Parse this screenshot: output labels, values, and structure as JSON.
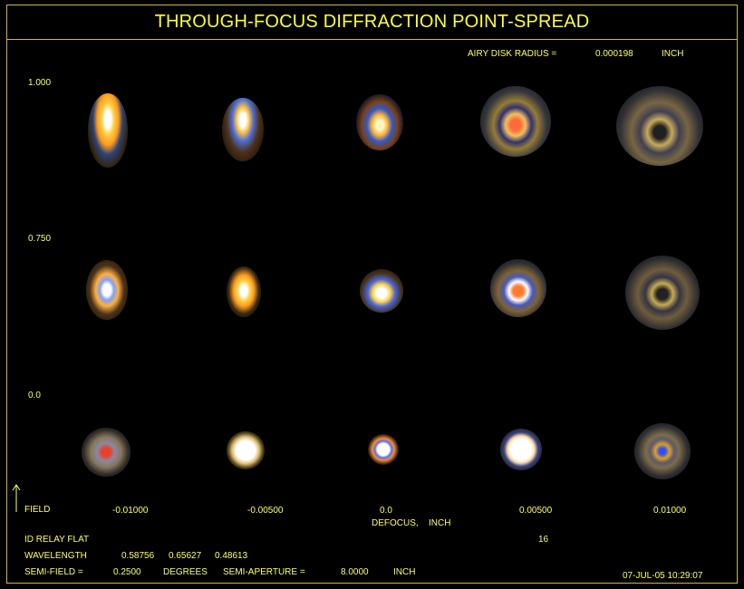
{
  "title": "THROUGH-FOCUS DIFFRACTION POINT-SPREAD",
  "airy": {
    "label": "AIRY DISK RADIUS =",
    "value": "0.000198",
    "unit": "INCH"
  },
  "fields": [
    "1.000",
    "0.750",
    "0.0"
  ],
  "field_label": "FIELD",
  "defocus": {
    "values": [
      "-0.01000",
      "-0.00500",
      "0.0",
      "0.00500",
      "0.01000"
    ],
    "label": "DEFOCUS,",
    "unit": "INCH"
  },
  "footer": {
    "system": "ID RELAY FLAT",
    "count": "16",
    "wavelength_label": "WAVELENGTH",
    "wavelengths": [
      "0.58756",
      "0.65627",
      "0.48613"
    ],
    "semi_field_label": "SEMI-FIELD =",
    "semi_field_value": "0.2500",
    "semi_field_unit": "DEGREES",
    "semi_aperture_label": "SEMI-APERTURE =",
    "semi_aperture_value": "8.0000",
    "semi_aperture_unit": "INCH",
    "timestamp": "07-JUL-05  10:29:07"
  },
  "colors": {
    "text": "#ffff66",
    "title": "#ffff33",
    "frame": "#c8b84a",
    "background": "#000000"
  },
  "spots": [
    [
      "elongated-yellow-blue",
      "elongated-yellow-blue",
      "ringed-blue-yellow",
      "ringed-red-orange",
      "ringed-gray-dark"
    ],
    [
      "elongated-white-orange",
      "elongated-yellow",
      "ringed-white-blue",
      "ringed-red-white",
      "ringed-gray-dark"
    ],
    [
      "round-red-gray",
      "round-white",
      "round-white-blue-ring",
      "round-white-halo",
      "round-blue-gray-ring"
    ]
  ]
}
